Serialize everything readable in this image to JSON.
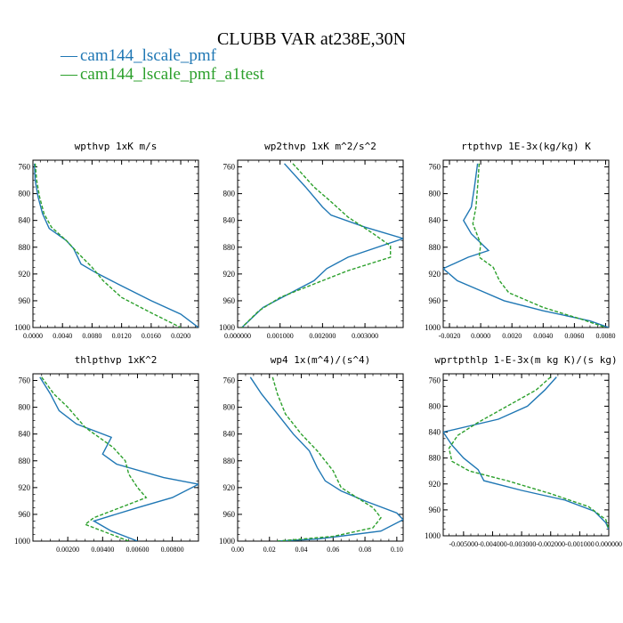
{
  "figure": {
    "title": "CLUBB VAR at238E,30N",
    "legend": [
      {
        "name": "cam144_lscale_pmf",
        "color": "#1f77b4",
        "dash": "solid"
      },
      {
        "name": "cam144_lscale_pmf_a1test",
        "color": "#2ca02c",
        "dash": "dashed"
      }
    ]
  },
  "chart_data": [
    {
      "type": "line",
      "title": "wpthvp  1xK m/s",
      "xlim": [
        0.0,
        0.0224
      ],
      "ylim": [
        1000,
        750
      ],
      "xticks": [
        0.0,
        0.004,
        0.008,
        0.012,
        0.016,
        0.02
      ],
      "xtick_labels": [
        "0.0000",
        "0.0040",
        "0.0080",
        "0.0120",
        "0.0160",
        "0.0200"
      ],
      "yticks": [
        760,
        800,
        840,
        880,
        920,
        960,
        1000
      ],
      "ytick_labels": [
        "760",
        "800",
        "840",
        "880",
        "920",
        "960",
        "1000"
      ],
      "series": [
        {
          "name": "cam144_lscale_pmf",
          "points": [
            [
              0.0002,
              755
            ],
            [
              0.0003,
              780
            ],
            [
              0.0007,
              805
            ],
            [
              0.0013,
              830
            ],
            [
              0.0022,
              852
            ],
            [
              0.0045,
              870
            ],
            [
              0.0055,
              882
            ],
            [
              0.0065,
              905
            ],
            [
              0.0085,
              918
            ],
            [
              0.0115,
              935
            ],
            [
              0.016,
              960
            ],
            [
              0.02,
              980
            ],
            [
              0.0224,
              1000
            ]
          ]
        },
        {
          "name": "cam144_lscale_pmf_a1test",
          "points": [
            [
              0.0003,
              755
            ],
            [
              0.0005,
              780
            ],
            [
              0.0009,
              805
            ],
            [
              0.0015,
              830
            ],
            [
              0.0025,
              850
            ],
            [
              0.0045,
              870
            ],
            [
              0.0062,
              890
            ],
            [
              0.008,
              910
            ],
            [
              0.0095,
              930
            ],
            [
              0.012,
              955
            ],
            [
              0.016,
              978
            ],
            [
              0.02,
              1000
            ]
          ]
        }
      ]
    },
    {
      "type": "line",
      "title": "wp2thvp  1xK m^2/s^2",
      "xlim": [
        0.0,
        0.0039
      ],
      "ylim": [
        1000,
        750
      ],
      "xticks": [
        0.0,
        0.001,
        0.002,
        0.003
      ],
      "xtick_labels": [
        "0.000000",
        "0.001000",
        "0.002000",
        "0.003000"
      ],
      "yticks": [
        760,
        800,
        840,
        880,
        920,
        960,
        1000
      ],
      "ytick_labels": [
        "760",
        "800",
        "840",
        "880",
        "920",
        "960",
        "1000"
      ],
      "series": [
        {
          "name": "cam144_lscale_pmf",
          "points": [
            [
              0.0011,
              755
            ],
            [
              0.0016,
              790
            ],
            [
              0.002,
              820
            ],
            [
              0.0022,
              832
            ],
            [
              0.003,
              850
            ],
            [
              0.0039,
              867
            ],
            [
              0.0026,
              895
            ],
            [
              0.0021,
              912
            ],
            [
              0.0018,
              930
            ],
            [
              0.0012,
              950
            ],
            [
              0.0006,
              970
            ],
            [
              0.0001,
              1000
            ]
          ]
        },
        {
          "name": "cam144_lscale_pmf_a1test",
          "points": [
            [
              0.0013,
              755
            ],
            [
              0.0018,
              790
            ],
            [
              0.0022,
              812
            ],
            [
              0.0026,
              835
            ],
            [
              0.0032,
              860
            ],
            [
              0.0036,
              878
            ],
            [
              0.0036,
              895
            ],
            [
              0.0026,
              915
            ],
            [
              0.0018,
              935
            ],
            [
              0.001,
              955
            ],
            [
              0.0005,
              975
            ],
            [
              0.0001,
              1000
            ]
          ]
        }
      ]
    },
    {
      "type": "line",
      "title": "rtpthvp  1E-3x(kg/kg) K",
      "xlim": [
        -0.0024,
        0.0082
      ],
      "ylim": [
        1000,
        750
      ],
      "xticks": [
        -0.002,
        0.0,
        0.002,
        0.004,
        0.006,
        0.008
      ],
      "xtick_labels": [
        "-0.0020",
        "0.0000",
        "0.0020",
        "0.0040",
        "0.0060",
        "0.0080"
      ],
      "yticks": [
        760,
        800,
        840,
        880,
        920,
        960,
        1000
      ],
      "ytick_labels": [
        "760",
        "800",
        "840",
        "880",
        "920",
        "960",
        "1000"
      ],
      "series": [
        {
          "name": "cam144_lscale_pmf",
          "points": [
            [
              -0.0002,
              755
            ],
            [
              -0.0004,
              790
            ],
            [
              -0.0006,
              820
            ],
            [
              -0.0011,
              840
            ],
            [
              -0.0006,
              860
            ],
            [
              0.0005,
              885
            ],
            [
              -0.0008,
              895
            ],
            [
              -0.0024,
              912
            ],
            [
              -0.0015,
              930
            ],
            [
              0.0,
              945
            ],
            [
              0.0015,
              960
            ],
            [
              0.004,
              975
            ],
            [
              0.007,
              990
            ],
            [
              0.0082,
              1000
            ]
          ]
        },
        {
          "name": "cam144_lscale_pmf_a1test",
          "points": [
            [
              -0.0001,
              755
            ],
            [
              -0.0002,
              790
            ],
            [
              -0.0003,
              820
            ],
            [
              -0.0005,
              845
            ],
            [
              0.0,
              875
            ],
            [
              -0.0001,
              895
            ],
            [
              0.0008,
              910
            ],
            [
              0.0012,
              930
            ],
            [
              0.0018,
              948
            ],
            [
              0.004,
              970
            ],
            [
              0.0065,
              988
            ],
            [
              0.008,
              1000
            ]
          ]
        }
      ]
    },
    {
      "type": "line",
      "title": "thlpthvp  1xK^2",
      "xlim": [
        0.0,
        0.0095
      ],
      "ylim": [
        1000,
        750
      ],
      "xticks": [
        0.002,
        0.004,
        0.006,
        0.008
      ],
      "xtick_labels": [
        "0.00200",
        "0.00400",
        "0.00600",
        "0.00800"
      ],
      "yticks": [
        760,
        800,
        840,
        880,
        920,
        960,
        1000
      ],
      "ytick_labels": [
        "760",
        "800",
        "840",
        "880",
        "920",
        "960",
        "1000"
      ],
      "series": [
        {
          "name": "cam144_lscale_pmf",
          "points": [
            [
              0.0004,
              755
            ],
            [
              0.001,
              780
            ],
            [
              0.0015,
              805
            ],
            [
              0.0025,
              825
            ],
            [
              0.0045,
              845
            ],
            [
              0.004,
              870
            ],
            [
              0.0048,
              885
            ],
            [
              0.0075,
              905
            ],
            [
              0.0095,
              915
            ],
            [
              0.008,
              935
            ],
            [
              0.006,
              950
            ],
            [
              0.0035,
              970
            ],
            [
              0.0045,
              985
            ],
            [
              0.006,
              1000
            ]
          ]
        },
        {
          "name": "cam144_lscale_pmf_a1test",
          "points": [
            [
              0.0005,
              755
            ],
            [
              0.0012,
              780
            ],
            [
              0.002,
              800
            ],
            [
              0.003,
              830
            ],
            [
              0.0046,
              860
            ],
            [
              0.0053,
              880
            ],
            [
              0.0055,
              900
            ],
            [
              0.006,
              920
            ],
            [
              0.0065,
              935
            ],
            [
              0.005,
              950
            ],
            [
              0.0035,
              965
            ],
            [
              0.003,
              975
            ],
            [
              0.0045,
              990
            ],
            [
              0.0055,
              1000
            ]
          ]
        }
      ]
    },
    {
      "type": "line",
      "title": "wp4  1x(m^4)/(s^4)",
      "xlim": [
        0.0,
        0.104
      ],
      "ylim": [
        1000,
        750
      ],
      "xticks": [
        0.0,
        0.02,
        0.04,
        0.06,
        0.08,
        0.1
      ],
      "xtick_labels": [
        "0.00",
        "0.02",
        "0.04",
        "0.06",
        "0.08",
        "0.10"
      ],
      "yticks": [
        760,
        800,
        840,
        880,
        920,
        960,
        1000
      ],
      "ytick_labels": [
        "760",
        "800",
        "840",
        "880",
        "920",
        "960",
        "1000"
      ],
      "series": [
        {
          "name": "cam144_lscale_pmf",
          "points": [
            [
              0.008,
              755
            ],
            [
              0.015,
              780
            ],
            [
              0.025,
              810
            ],
            [
              0.035,
              840
            ],
            [
              0.045,
              865
            ],
            [
              0.05,
              890
            ],
            [
              0.055,
              910
            ],
            [
              0.065,
              925
            ],
            [
              0.08,
              940
            ],
            [
              0.1,
              958
            ],
            [
              0.104,
              968
            ],
            [
              0.09,
              985
            ],
            [
              0.05,
              997
            ],
            [
              0.025,
              1000
            ]
          ]
        },
        {
          "name": "cam144_lscale_pmf_a1test",
          "points": [
            [
              0.022,
              755
            ],
            [
              0.025,
              780
            ],
            [
              0.03,
              810
            ],
            [
              0.04,
              840
            ],
            [
              0.05,
              865
            ],
            [
              0.06,
              895
            ],
            [
              0.065,
              920
            ],
            [
              0.075,
              935
            ],
            [
              0.085,
              950
            ],
            [
              0.09,
              965
            ],
            [
              0.085,
              980
            ],
            [
              0.06,
              993
            ],
            [
              0.025,
              1000
            ]
          ]
        }
      ]
    },
    {
      "type": "line",
      "title": "wprtpthlp  1-E-3x(m kg K)/(s kg)",
      "xlim": [
        -0.0057,
        0.0
      ],
      "ylim": [
        1000,
        750
      ],
      "xticks": [
        -0.005,
        -0.004,
        -0.003,
        -0.002,
        -0.001,
        0.0
      ],
      "xtick_labels": [
        "-0.005000",
        "-0.004000",
        "-0.003000",
        "-0.002000",
        "-0.001000",
        "0.000000"
      ],
      "yticks": [
        760,
        800,
        840,
        880,
        920,
        960,
        1000
      ],
      "ytick_labels": [
        "760",
        "800",
        "840",
        "880",
        "920",
        "960",
        "1000"
      ],
      "series": [
        {
          "name": "cam144_lscale_pmf",
          "points": [
            [
              -0.0018,
              755
            ],
            [
              -0.0022,
              775
            ],
            [
              -0.0028,
              800
            ],
            [
              -0.0038,
              820
            ],
            [
              -0.0057,
              840
            ],
            [
              -0.0054,
              860
            ],
            [
              -0.005,
              880
            ],
            [
              -0.0045,
              898
            ],
            [
              -0.0043,
              915
            ],
            [
              -0.003,
              930
            ],
            [
              -0.0015,
              945
            ],
            [
              -0.0005,
              962
            ],
            [
              -0.0001,
              980
            ],
            [
              0.0,
              990
            ]
          ]
        },
        {
          "name": "cam144_lscale_pmf_a1test",
          "points": [
            [
              -0.002,
              755
            ],
            [
              -0.0025,
              775
            ],
            [
              -0.0035,
              800
            ],
            [
              -0.0045,
              825
            ],
            [
              -0.0052,
              845
            ],
            [
              -0.0055,
              865
            ],
            [
              -0.0054,
              885
            ],
            [
              -0.0048,
              900
            ],
            [
              -0.0035,
              915
            ],
            [
              -0.002,
              935
            ],
            [
              -0.0007,
              955
            ],
            [
              -0.0001,
              975
            ],
            [
              0.0,
              990
            ]
          ]
        }
      ]
    }
  ]
}
